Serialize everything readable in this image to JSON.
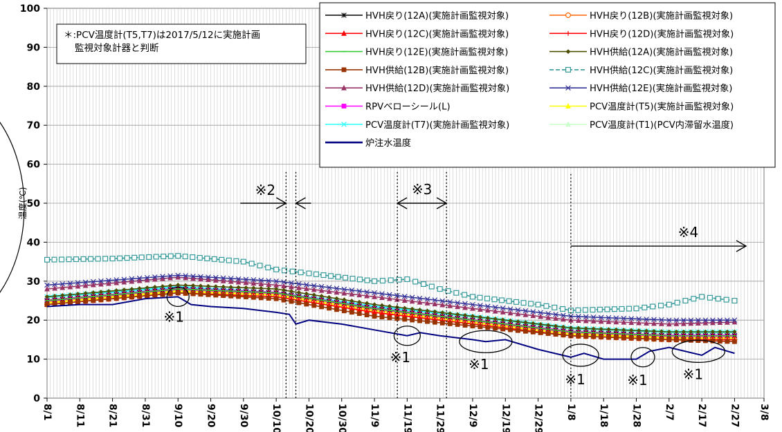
{
  "chart_data": {
    "type": "line",
    "ylabel": "温度(℃)",
    "ylim": [
      0,
      100
    ],
    "yticks": [
      0,
      10,
      20,
      30,
      40,
      50,
      60,
      70,
      80,
      90,
      100
    ],
    "xlim": [
      "8/1",
      "3/8"
    ],
    "xticks": [
      "8/1",
      "8/11",
      "8/21",
      "8/31",
      "9/10",
      "9/20",
      "9/30",
      "10/10",
      "10/20",
      "10/30",
      "11/9",
      "11/19",
      "11/29",
      "12/9",
      "12/19",
      "12/29",
      "1/8",
      "1/18",
      "1/28",
      "2/7",
      "2/17",
      "2/27",
      "3/8"
    ],
    "grid": "vertical-daily-and-horizontal",
    "legend_position": "top-right",
    "note": "＊:PCV温度計(T5,T7)は2017/5/12に実施計画監視対象計器と判断",
    "series": [
      {
        "name": "HVH戻り(12A)(実施計画監視対象)",
        "color": "#000000",
        "marker": "asterisk",
        "x": [
          "8/1",
          "9/10",
          "10/10",
          "11/9",
          "12/9",
          "1/8",
          "2/7",
          "2/27"
        ],
        "y": [
          25,
          28,
          27,
          23,
          20,
          17,
          16,
          16
        ]
      },
      {
        "name": "HVH戻り(12B)(実施計画監視対象)",
        "color": "#ff6600",
        "marker": "circle",
        "x": [
          "8/1",
          "9/10",
          "10/10",
          "11/9",
          "12/9",
          "1/8",
          "2/7",
          "2/27"
        ],
        "y": [
          24,
          27,
          26,
          22,
          19,
          16,
          15,
          15
        ]
      },
      {
        "name": "HVH戻り(12C)(実施計画監視対象)",
        "color": "#ff0000",
        "marker": "triangle",
        "x": [
          "8/1",
          "9/10",
          "10/10",
          "11/9",
          "12/9",
          "1/8",
          "2/7",
          "2/27"
        ],
        "y": [
          24,
          27,
          26,
          22,
          19,
          16,
          15,
          15
        ]
      },
      {
        "name": "HVH戻り(12D)(実施計画監視対象)",
        "color": "#ff0000",
        "marker": "plus",
        "x": [
          "8/1",
          "9/10",
          "10/10",
          "11/9",
          "12/9",
          "1/8",
          "2/7",
          "2/27"
        ],
        "y": [
          25,
          28,
          27,
          23,
          20,
          17,
          16,
          16
        ]
      },
      {
        "name": "HVH戻り(12E)(実施計画監視対象)",
        "color": "#33cc33",
        "marker": "dash",
        "x": [
          "8/1",
          "9/10",
          "10/10",
          "11/9",
          "12/9",
          "1/8",
          "2/7",
          "2/27"
        ],
        "y": [
          25,
          28,
          27,
          23,
          20,
          17,
          16,
          16
        ]
      },
      {
        "name": "HVH供給(12A)(実施計画監視対象)",
        "color": "#4d4d00",
        "marker": "diamond",
        "x": [
          "8/1",
          "9/10",
          "10/10",
          "11/9",
          "12/9",
          "1/8",
          "2/7",
          "2/27"
        ],
        "y": [
          26,
          29,
          28,
          24,
          21,
          18,
          17,
          17
        ]
      },
      {
        "name": "HVH供給(12B)(実施計画監視対象)",
        "color": "#993300",
        "marker": "square",
        "x": [
          "8/1",
          "9/10",
          "10/10",
          "11/9",
          "12/9",
          "1/8",
          "2/7",
          "2/27"
        ],
        "y": [
          24,
          27,
          25.5,
          21,
          18.5,
          16,
          15,
          14.5
        ]
      },
      {
        "name": "HVH供給(12C)(実施計画監視対象)",
        "color": "#339999",
        "marker": "square-open",
        "dashed": true,
        "x": [
          "8/1",
          "8/21",
          "9/10",
          "9/30",
          "10/10",
          "10/20",
          "11/9",
          "11/19",
          "11/29",
          "12/9",
          "12/29",
          "1/8",
          "1/28",
          "2/7",
          "2/17",
          "2/27"
        ],
        "y": [
          35.5,
          35.8,
          36.5,
          35,
          33,
          32,
          30,
          30.5,
          28,
          26,
          24,
          22.5,
          23,
          24,
          26,
          25
        ]
      },
      {
        "name": "HVH供給(12D)(実施計画監視対象)",
        "color": "#993366",
        "marker": "triangle",
        "x": [
          "8/1",
          "9/10",
          "10/10",
          "11/9",
          "12/9",
          "1/8",
          "2/7",
          "2/27"
        ],
        "y": [
          28,
          31,
          29,
          26,
          23,
          20,
          19,
          19.5
        ]
      },
      {
        "name": "HVH供給(12E)(実施計画監視対象)",
        "color": "#333399",
        "marker": "x",
        "x": [
          "8/1",
          "9/10",
          "10/10",
          "11/9",
          "12/9",
          "1/8",
          "2/7",
          "2/27"
        ],
        "y": [
          29,
          31.5,
          30,
          27,
          24,
          21,
          20,
          20
        ]
      },
      {
        "name": "RPVベローシール(L)",
        "color": "#ff00ff",
        "marker": "square",
        "x": [
          "8/1",
          "9/10",
          "10/10",
          "11/9",
          "12/9",
          "1/8",
          "2/7",
          "2/27"
        ],
        "y": [
          25,
          28,
          27,
          23,
          20,
          17,
          16,
          16
        ]
      },
      {
        "name": "PCV温度計(T5)(実施計画監視対象)",
        "color": "#ffff00",
        "marker": "triangle",
        "x": [
          "8/1",
          "9/10",
          "10/10",
          "11/9",
          "12/9",
          "1/8",
          "2/7",
          "2/27"
        ],
        "y": [
          24.5,
          27.5,
          26.5,
          22.5,
          19.5,
          16.5,
          15.5,
          15.5
        ]
      },
      {
        "name": "PCV温度計(T7)(実施計画監視対象)",
        "color": "#33ffff",
        "marker": "x",
        "x": [
          "8/1",
          "9/10",
          "10/10",
          "11/9",
          "12/9",
          "1/8",
          "2/7",
          "2/27"
        ],
        "y": [
          26,
          28.5,
          27,
          23.5,
          21,
          18,
          17,
          17
        ]
      },
      {
        "name": "PCV温度計(T1)(PCV内滞留水温度)",
        "color": "#ccffcc",
        "marker": "triangle",
        "x": [
          "8/1",
          "9/10",
          "10/10",
          "11/9",
          "12/9",
          "1/8",
          "2/7",
          "2/27"
        ],
        "y": [
          25.5,
          28,
          26.5,
          23,
          20.5,
          17.5,
          16.5,
          16.5
        ]
      },
      {
        "name": "炉注水温度",
        "color": "#000080",
        "marker": "none",
        "x": [
          "8/1",
          "8/11",
          "8/21",
          "8/31",
          "9/10",
          "9/14",
          "9/20",
          "9/30",
          "10/10",
          "10/14",
          "10/16",
          "10/20",
          "10/30",
          "11/9",
          "11/19",
          "11/23",
          "11/29",
          "12/9",
          "12/13",
          "12/19",
          "12/29",
          "1/8",
          "1/12",
          "1/18",
          "1/28",
          "2/1",
          "2/7",
          "2/17",
          "2/21",
          "2/27"
        ],
        "y": [
          23.5,
          24,
          24,
          25.5,
          26,
          24,
          23.5,
          23,
          22,
          21.5,
          19,
          20,
          19,
          17.5,
          16,
          16.8,
          16,
          15,
          14.5,
          15,
          12.5,
          10.5,
          11.5,
          10,
          10,
          12,
          13,
          11,
          13,
          11.5
        ]
      }
    ],
    "annotations": [
      {
        "text": "※1",
        "x": "9/10",
        "y": 26
      },
      {
        "text": "※1",
        "x": "11/19",
        "y": 16
      },
      {
        "text": "※1",
        "x": "12/13",
        "y": 14.5
      },
      {
        "text": "※1",
        "x": "1/11",
        "y": 11
      },
      {
        "text": "※1",
        "x": "1/30",
        "y": 10.5
      },
      {
        "text": "※1",
        "x": "2/16",
        "y": 12
      },
      {
        "text": "※2",
        "x": [
          "10/13",
          "10/16"
        ]
      },
      {
        "text": "※3",
        "x": [
          "11/16",
          "12/1"
        ]
      },
      {
        "text": "※4",
        "x": [
          "1/8",
          "3/8"
        ]
      }
    ]
  }
}
